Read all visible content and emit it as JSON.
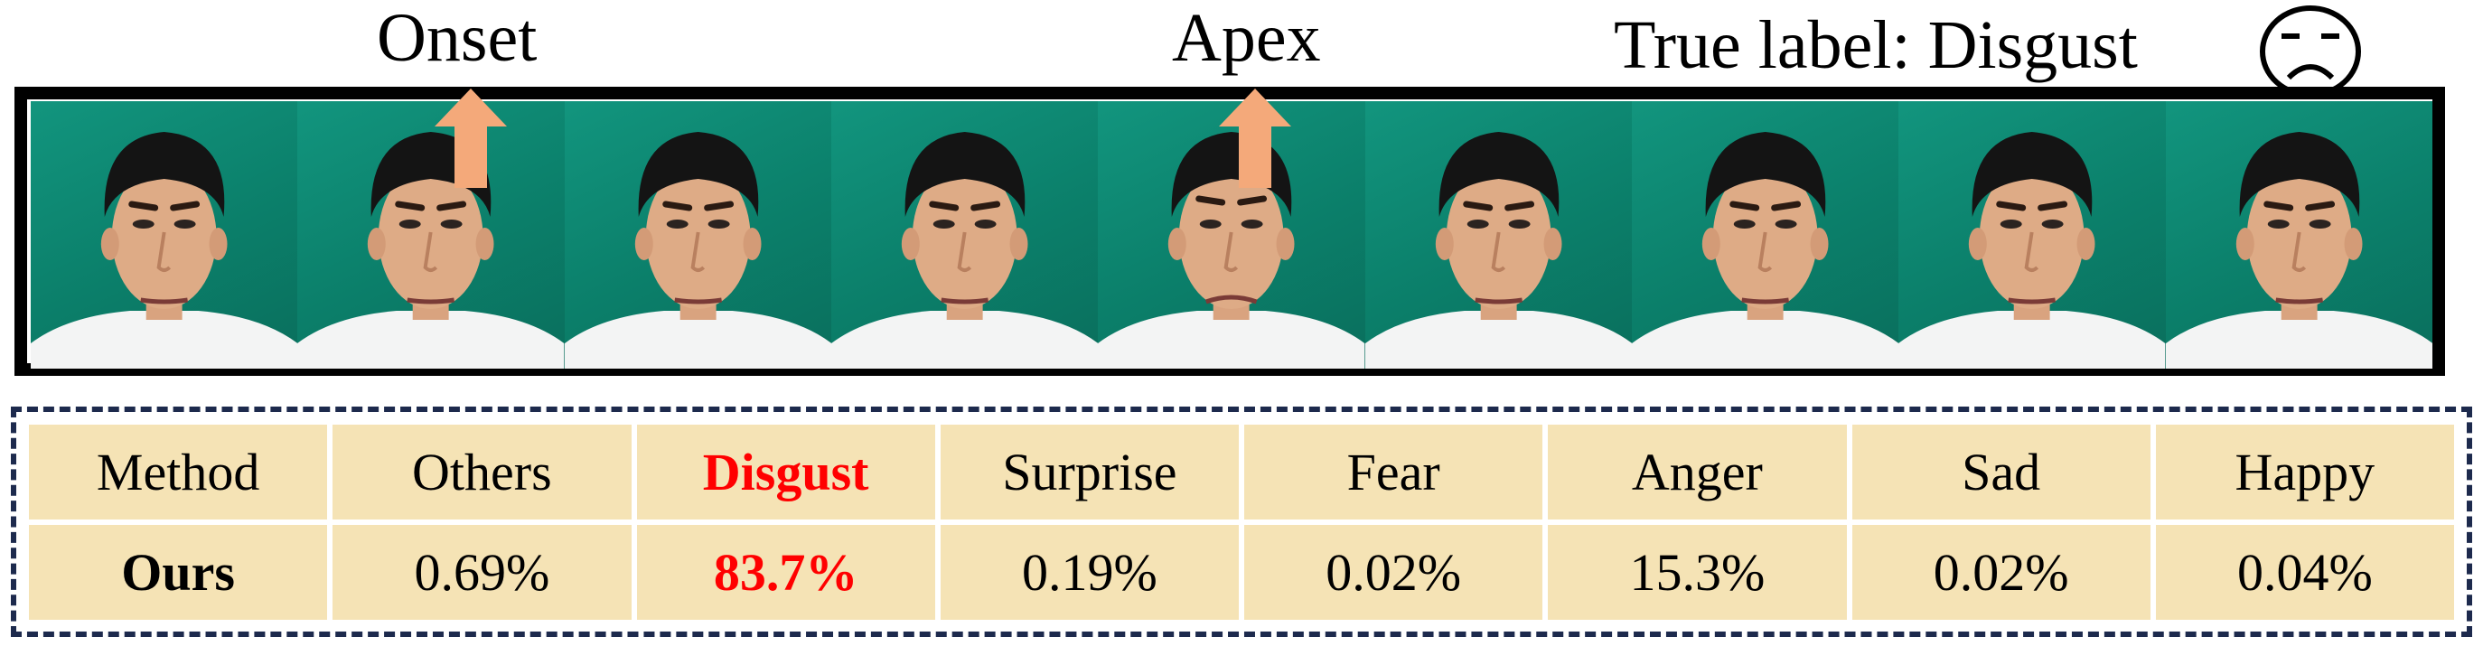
{
  "labels": {
    "onset": "Onset",
    "apex": "Apex",
    "true_label": "True label: Disgust"
  },
  "frames": {
    "count": 9,
    "onset_index": 1,
    "apex_index": 4
  },
  "table": {
    "header": [
      "Method",
      "Others",
      "Disgust",
      "Surprise",
      "Fear",
      "Anger",
      "Sad",
      "Happy"
    ],
    "row": [
      "Ours",
      "0.69%",
      "83.7%",
      "0.19%",
      "0.02%",
      "15.3%",
      "0.02%",
      "0.04%"
    ]
  },
  "colors": {
    "highlight": "#ff0000",
    "arrow": "#f4a97a",
    "table_cell": "#f5e3b5",
    "dashed_border": "#1d2a4d",
    "background_green": "#0b7f6a"
  },
  "icons": [
    "disgust-face-icon",
    "up-arrow-icon"
  ]
}
